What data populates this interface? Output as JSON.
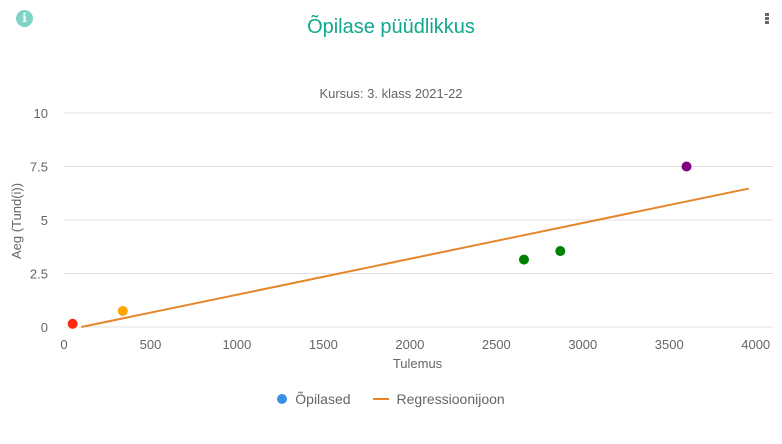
{
  "header": {
    "title": "Õpilase püüdlikkus",
    "info_icon": "info-icon",
    "menu_icon": "kebab-menu-icon"
  },
  "colors": {
    "title": "#10a88e",
    "info_icon": "#7fd3c7",
    "legend_students": "#3a8ee6",
    "regression": "#e6862a",
    "grid": "#e0e0e0",
    "text": "#666666"
  },
  "chart_data": {
    "type": "scatter",
    "title": "Õpilase püüdlikkus",
    "subtitle": "Kursus: 3. klass 2021-22",
    "xlabel": "Tulemus",
    "ylabel": "Aeg (Tund(i))",
    "xlim": [
      0,
      4100
    ],
    "ylim": [
      0,
      10
    ],
    "x_ticks": [
      "0",
      "500",
      "1000",
      "1500",
      "2000",
      "2500",
      "3000",
      "3500",
      "4000"
    ],
    "y_ticks": [
      "0",
      "2.5",
      "5",
      "7.5",
      "10"
    ],
    "grid": true,
    "legend_position": "bottom",
    "legend": [
      "Õpilased",
      "Regressioonijoon"
    ],
    "series": [
      {
        "name": "Õpilased",
        "type": "scatter",
        "points": [
          {
            "x": 50,
            "y": 0.15,
            "color": "#ff2a0e"
          },
          {
            "x": 340,
            "y": 0.75,
            "color": "#ffa500"
          },
          {
            "x": 2660,
            "y": 3.15,
            "color": "#008000"
          },
          {
            "x": 2870,
            "y": 3.55,
            "color": "#008000"
          },
          {
            "x": 3600,
            "y": 7.5,
            "color": "#800080"
          }
        ]
      },
      {
        "name": "Regressioonijoon",
        "type": "line",
        "points": [
          {
            "x": 100,
            "y": 0
          },
          {
            "x": 3960,
            "y": 6.47
          }
        ]
      }
    ]
  }
}
